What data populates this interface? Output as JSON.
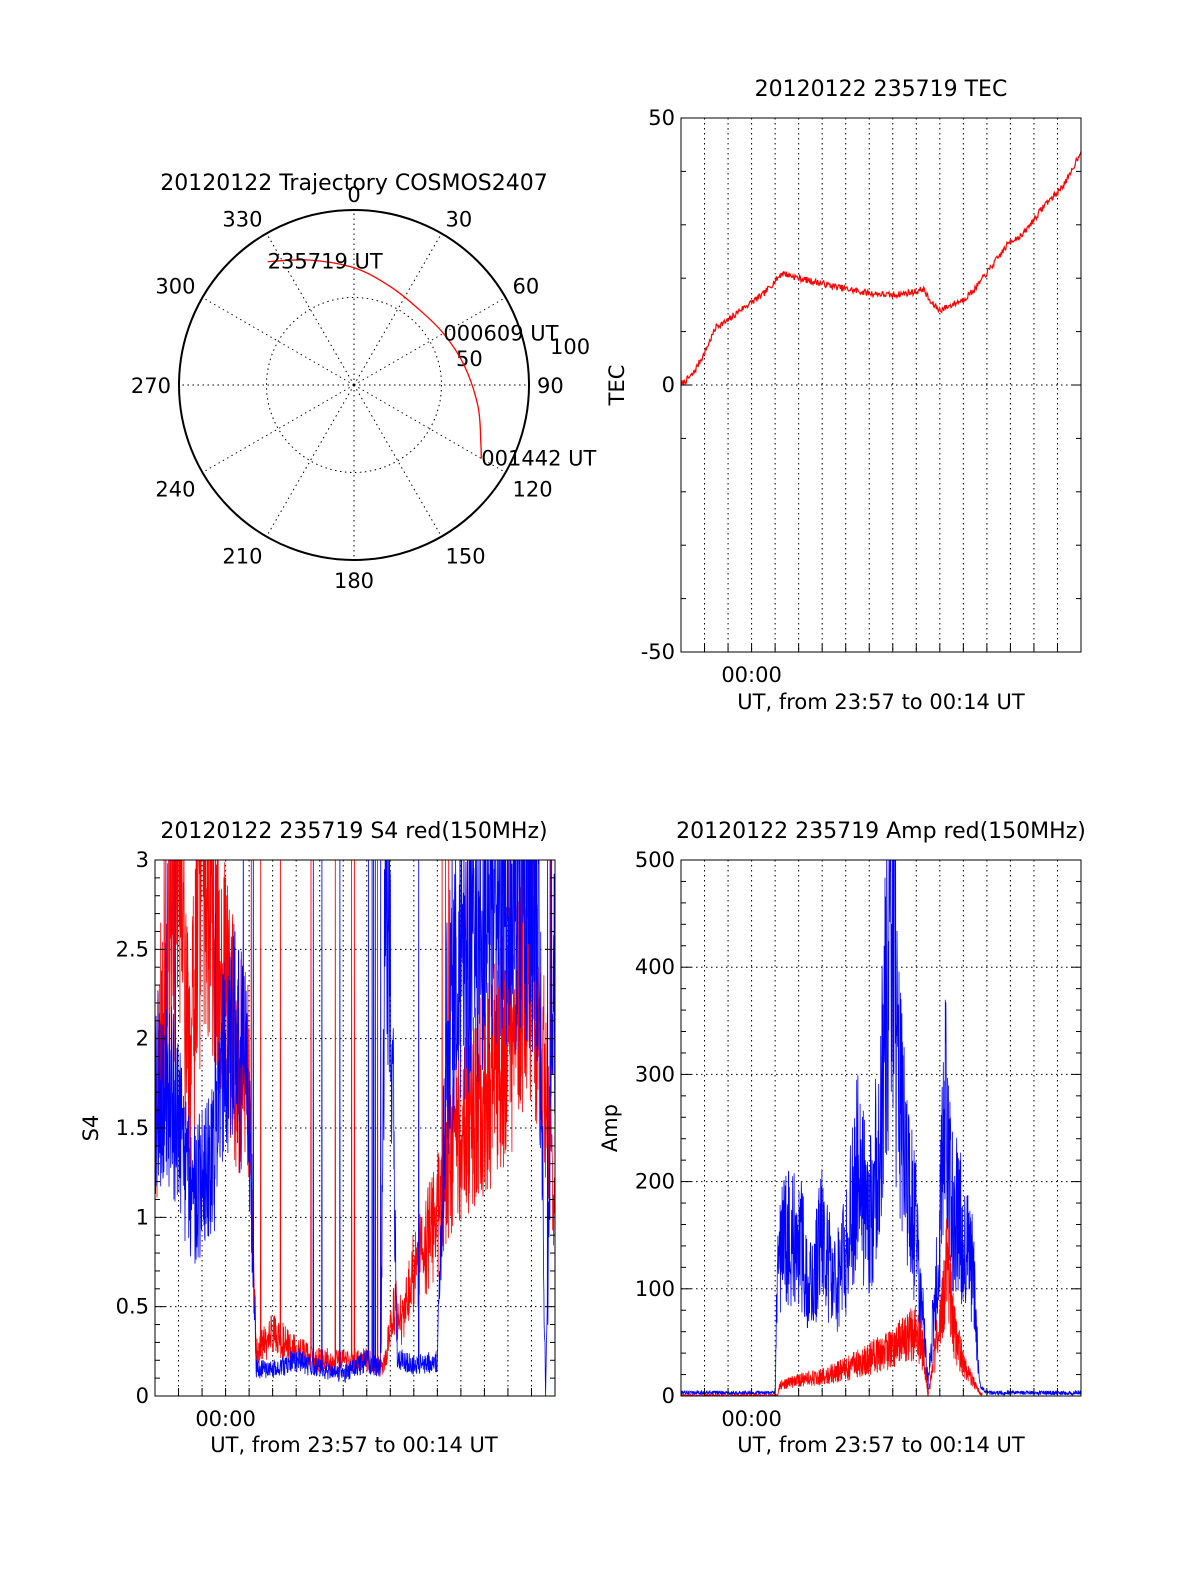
{
  "chart_data": [
    {
      "type": "polar",
      "title": "20120122 Trajectory COSMOS2407",
      "angle_ticks": [
        "0",
        "30",
        "60",
        "90",
        "120",
        "150",
        "180",
        "210",
        "240",
        "270",
        "300",
        "330"
      ],
      "radial_ticks": [
        "50",
        "100"
      ],
      "rlim": [
        0,
        100
      ],
      "series": [
        {
          "color": "#ff0000",
          "points": [
            {
              "azimuth": 325,
              "elevation_r": 86
            },
            {
              "azimuth": 340,
              "elevation_r": 76
            },
            {
              "azimuth": 0,
              "elevation_r": 67
            },
            {
              "azimuth": 20,
              "elevation_r": 60
            },
            {
              "azimuth": 40,
              "elevation_r": 57
            },
            {
              "azimuth": 60,
              "elevation_r": 59
            },
            {
              "azimuth": 80,
              "elevation_r": 64
            },
            {
              "azimuth": 100,
              "elevation_r": 72
            },
            {
              "azimuth": 115,
              "elevation_r": 80
            },
            {
              "azimuth": 120,
              "elevation_r": 84
            }
          ]
        }
      ],
      "annotations": [
        {
          "text": "235719 UT",
          "azimuth": 325,
          "r": 86
        },
        {
          "text": "000609 UT",
          "azimuth": 60,
          "r": 59
        },
        {
          "text": "001442 UT",
          "azimuth": 120,
          "r": 84
        }
      ]
    },
    {
      "type": "line",
      "title": "20120122 235719 TEC",
      "xlabel": "UT, from 23:57 to 00:14 UT",
      "ylabel": "TEC",
      "xlim": [
        0,
        17
      ],
      "ylim": [
        -50,
        50
      ],
      "yticks": [
        "-50",
        "0",
        "50"
      ],
      "xticks": [
        {
          "label": "00:00",
          "x": 3
        }
      ],
      "series": [
        {
          "color": "#ff0000",
          "points": [
            [
              0,
              0
            ],
            [
              0.5,
              2
            ],
            [
              1,
              6
            ],
            [
              1.5,
              11
            ],
            [
              2,
              12
            ],
            [
              2.5,
              14
            ],
            [
              3,
              15.5
            ],
            [
              3.5,
              17
            ],
            [
              4,
              19.5
            ],
            [
              4.3,
              21
            ],
            [
              5,
              20
            ],
            [
              6,
              19
            ],
            [
              7,
              18
            ],
            [
              8,
              17.2
            ],
            [
              9,
              16.8
            ],
            [
              10,
              17.5
            ],
            [
              10.3,
              18
            ],
            [
              10.6,
              15.5
            ],
            [
              11,
              14
            ],
            [
              11.5,
              15
            ],
            [
              12,
              16
            ],
            [
              12.5,
              18
            ],
            [
              13,
              21
            ],
            [
              13.5,
              24
            ],
            [
              14,
              27
            ],
            [
              14.5,
              28
            ],
            [
              15,
              31
            ],
            [
              15.5,
              34
            ],
            [
              16,
              36
            ],
            [
              16.5,
              39
            ],
            [
              17,
              44
            ]
          ]
        }
      ]
    },
    {
      "type": "line",
      "title": "20120122 235719 S4 red(150MHz)",
      "xlabel": "UT, from 23:57 to 00:14 UT",
      "ylabel": "S4",
      "xlim": [
        0,
        17
      ],
      "ylim": [
        0,
        3
      ],
      "yticks": [
        "0",
        "0.5",
        "1",
        "1.5",
        "2",
        "2.5",
        "3"
      ],
      "xticks": [
        {
          "label": "00:00",
          "x": 3
        }
      ],
      "series": [
        {
          "color": "#ff0000",
          "points": [
            [
              0,
              1.5
            ],
            [
              0.5,
              2.5
            ],
            [
              1,
              3
            ],
            [
              1.5,
              1.8
            ],
            [
              2,
              3
            ],
            [
              2.5,
              2.8
            ],
            [
              3,
              2.2
            ],
            [
              3.5,
              1.9
            ],
            [
              4,
              1.7
            ],
            [
              4.3,
              0.25
            ],
            [
              5,
              0.35
            ],
            [
              6,
              0.25
            ],
            [
              7,
              0.2
            ],
            [
              8,
              0.2
            ],
            [
              9,
              0.2
            ],
            [
              9.7,
              0.15
            ],
            [
              10.2,
              0.5
            ],
            [
              10.5,
              0.4
            ],
            [
              11,
              0.7
            ],
            [
              12,
              1.0
            ],
            [
              12.5,
              1.3
            ],
            [
              13,
              1.5
            ],
            [
              14,
              1.7
            ],
            [
              15,
              2.0
            ],
            [
              16,
              2.5
            ],
            [
              17,
              1.2
            ]
          ]
        },
        {
          "color": "#0000ff",
          "points": [
            [
              0,
              1.7
            ],
            [
              0.5,
              1.8
            ],
            [
              1,
              1.5
            ],
            [
              1.5,
              1.1
            ],
            [
              2,
              1.2
            ],
            [
              2.5,
              1.3
            ],
            [
              3,
              2.0
            ],
            [
              3.5,
              2.0
            ],
            [
              4,
              1.6
            ],
            [
              4.3,
              0.15
            ],
            [
              5,
              0.15
            ],
            [
              6,
              0.2
            ],
            [
              7,
              0.15
            ],
            [
              8,
              0.12
            ],
            [
              9,
              0.2
            ],
            [
              9.6,
              0.15
            ],
            [
              9.8,
              3.0
            ],
            [
              10.1,
              1.8
            ],
            [
              10.3,
              0.2
            ],
            [
              11,
              0.18
            ],
            [
              12,
              0.2
            ],
            [
              12.4,
              2.0
            ],
            [
              13,
              2.5
            ],
            [
              14,
              2.7
            ],
            [
              15,
              2.8
            ],
            [
              16,
              2.9
            ],
            [
              16.3,
              2.8
            ],
            [
              16.6,
              0
            ],
            [
              17,
              2.5
            ]
          ]
        }
      ]
    },
    {
      "type": "line",
      "title": "20120122 235719 Amp red(150MHz)",
      "xlabel": "UT, from 23:57 to 00:14 UT",
      "ylabel": "Amp",
      "xlim": [
        0,
        17
      ],
      "ylim": [
        0,
        500
      ],
      "yticks": [
        "0",
        "100",
        "200",
        "300",
        "400",
        "500"
      ],
      "xticks": [
        {
          "label": "00:00",
          "x": 3
        }
      ],
      "series": [
        {
          "color": "#0000ff",
          "points": [
            [
              0,
              3
            ],
            [
              1,
              3
            ],
            [
              2,
              3
            ],
            [
              3,
              3
            ],
            [
              4,
              3
            ],
            [
              4.1,
              120
            ],
            [
              4.5,
              150
            ],
            [
              5,
              150
            ],
            [
              5.5,
              100
            ],
            [
              6,
              150
            ],
            [
              6.5,
              100
            ],
            [
              7,
              130
            ],
            [
              7.5,
              210
            ],
            [
              8,
              160
            ],
            [
              8.5,
              260
            ],
            [
              9,
              490
            ],
            [
              9.2,
              300
            ],
            [
              9.6,
              200
            ],
            [
              10,
              150
            ],
            [
              10.5,
              10
            ],
            [
              11,
              150
            ],
            [
              11.2,
              290
            ],
            [
              11.5,
              180
            ],
            [
              12,
              150
            ],
            [
              12.4,
              120
            ],
            [
              12.7,
              10
            ],
            [
              13,
              3
            ],
            [
              14,
              3
            ],
            [
              15,
              3
            ],
            [
              16,
              3
            ],
            [
              17,
              3
            ]
          ]
        },
        {
          "color": "#ff0000",
          "points": [
            [
              0,
              0
            ],
            [
              4.1,
              0
            ],
            [
              4.2,
              10
            ],
            [
              5,
              15
            ],
            [
              6,
              18
            ],
            [
              7,
              25
            ],
            [
              8,
              35
            ],
            [
              9,
              45
            ],
            [
              10,
              60
            ],
            [
              10.3,
              40
            ],
            [
              10.5,
              0
            ],
            [
              10.8,
              40
            ],
            [
              11,
              70
            ],
            [
              11.3,
              120
            ],
            [
              11.6,
              60
            ],
            [
              12,
              30
            ],
            [
              12.5,
              10
            ],
            [
              12.8,
              0
            ]
          ]
        }
      ]
    }
  ]
}
